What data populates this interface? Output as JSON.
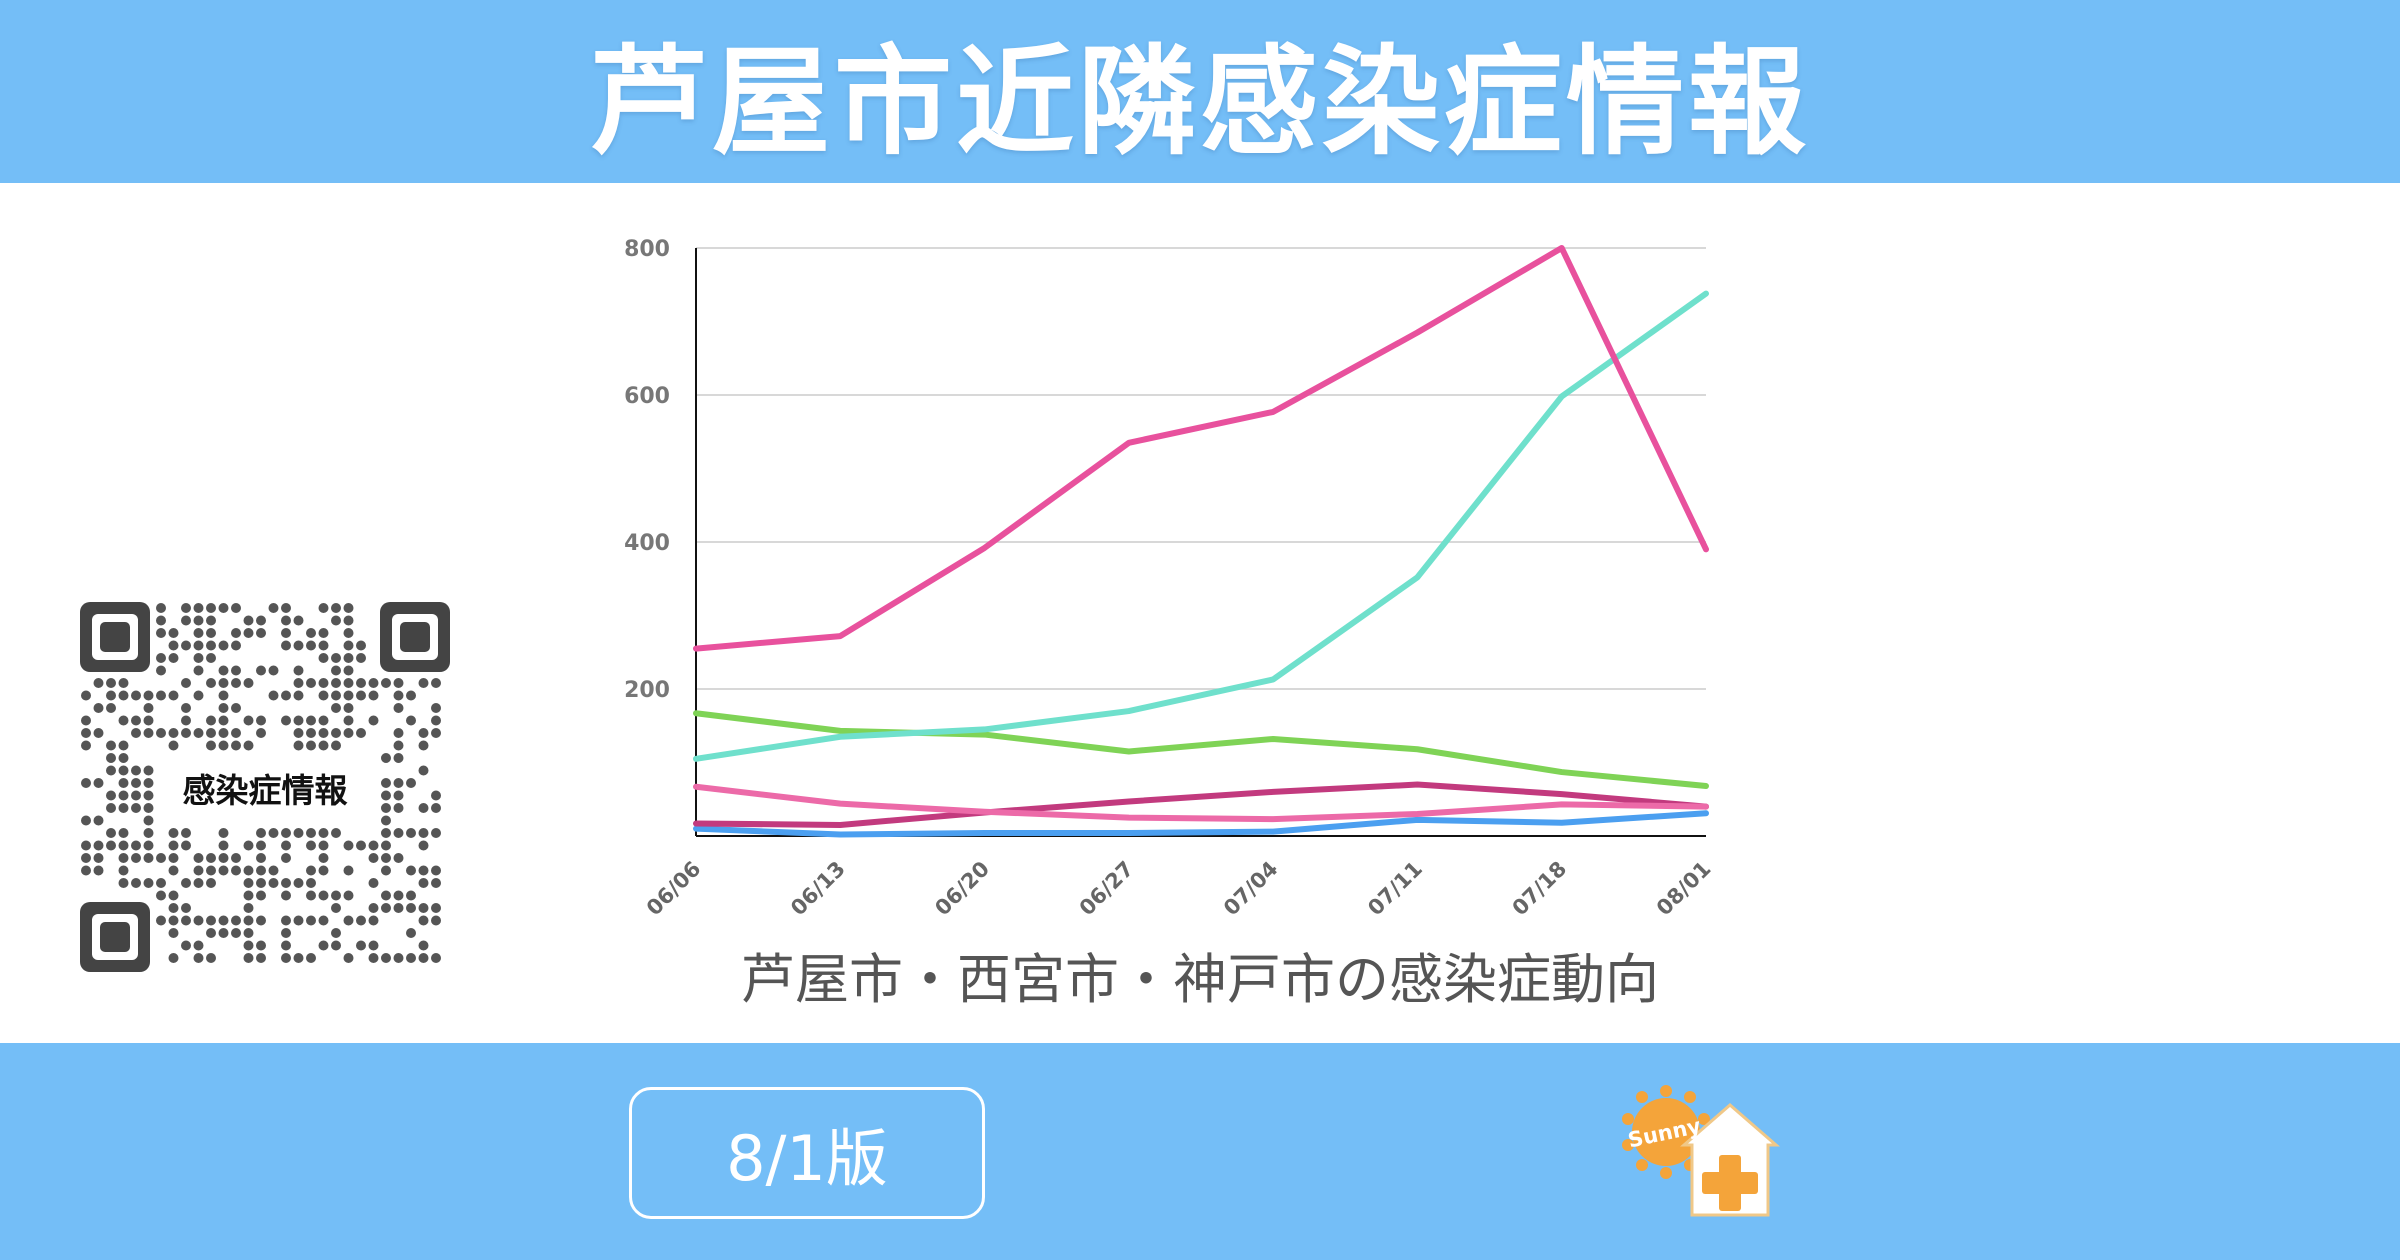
{
  "header": {
    "title": "芦屋市近隣感染症情報"
  },
  "qr": {
    "label": "感染症情報"
  },
  "footer": {
    "edition": "8/1版",
    "logo_text": "Sunny"
  },
  "colors": {
    "header_bg": "#74bef7"
  },
  "chart_data": {
    "type": "line",
    "title": "芦屋市・西宮市・神戸市の感染症動向",
    "xlabel": "",
    "ylabel": "",
    "categories": [
      "06/06",
      "06/13",
      "06/20",
      "06/27",
      "07/04",
      "07/11",
      "07/18",
      "08/01"
    ],
    "ylim": [
      0,
      800
    ],
    "yticks": [
      200,
      400,
      600,
      800
    ],
    "grid": true,
    "series": [
      {
        "color": "#e8519d",
        "values": [
          255,
          272,
          392,
          535,
          577,
          685,
          800,
          390
        ]
      },
      {
        "color": "#6fe0cc",
        "values": [
          105,
          135,
          145,
          170,
          213,
          352,
          598,
          738
        ]
      },
      {
        "color": "#7fd356",
        "values": [
          167,
          143,
          138,
          115,
          132,
          118,
          87,
          68
        ]
      },
      {
        "color": "#ec6aa8",
        "values": [
          67,
          44,
          33,
          25,
          23,
          30,
          43,
          40
        ]
      },
      {
        "color": "#c23a7e",
        "values": [
          17,
          15,
          32,
          47,
          60,
          70,
          57,
          40
        ]
      },
      {
        "color": "#4b9ff0",
        "values": [
          10,
          2,
          4,
          4,
          6,
          22,
          18,
          31
        ]
      }
    ]
  }
}
